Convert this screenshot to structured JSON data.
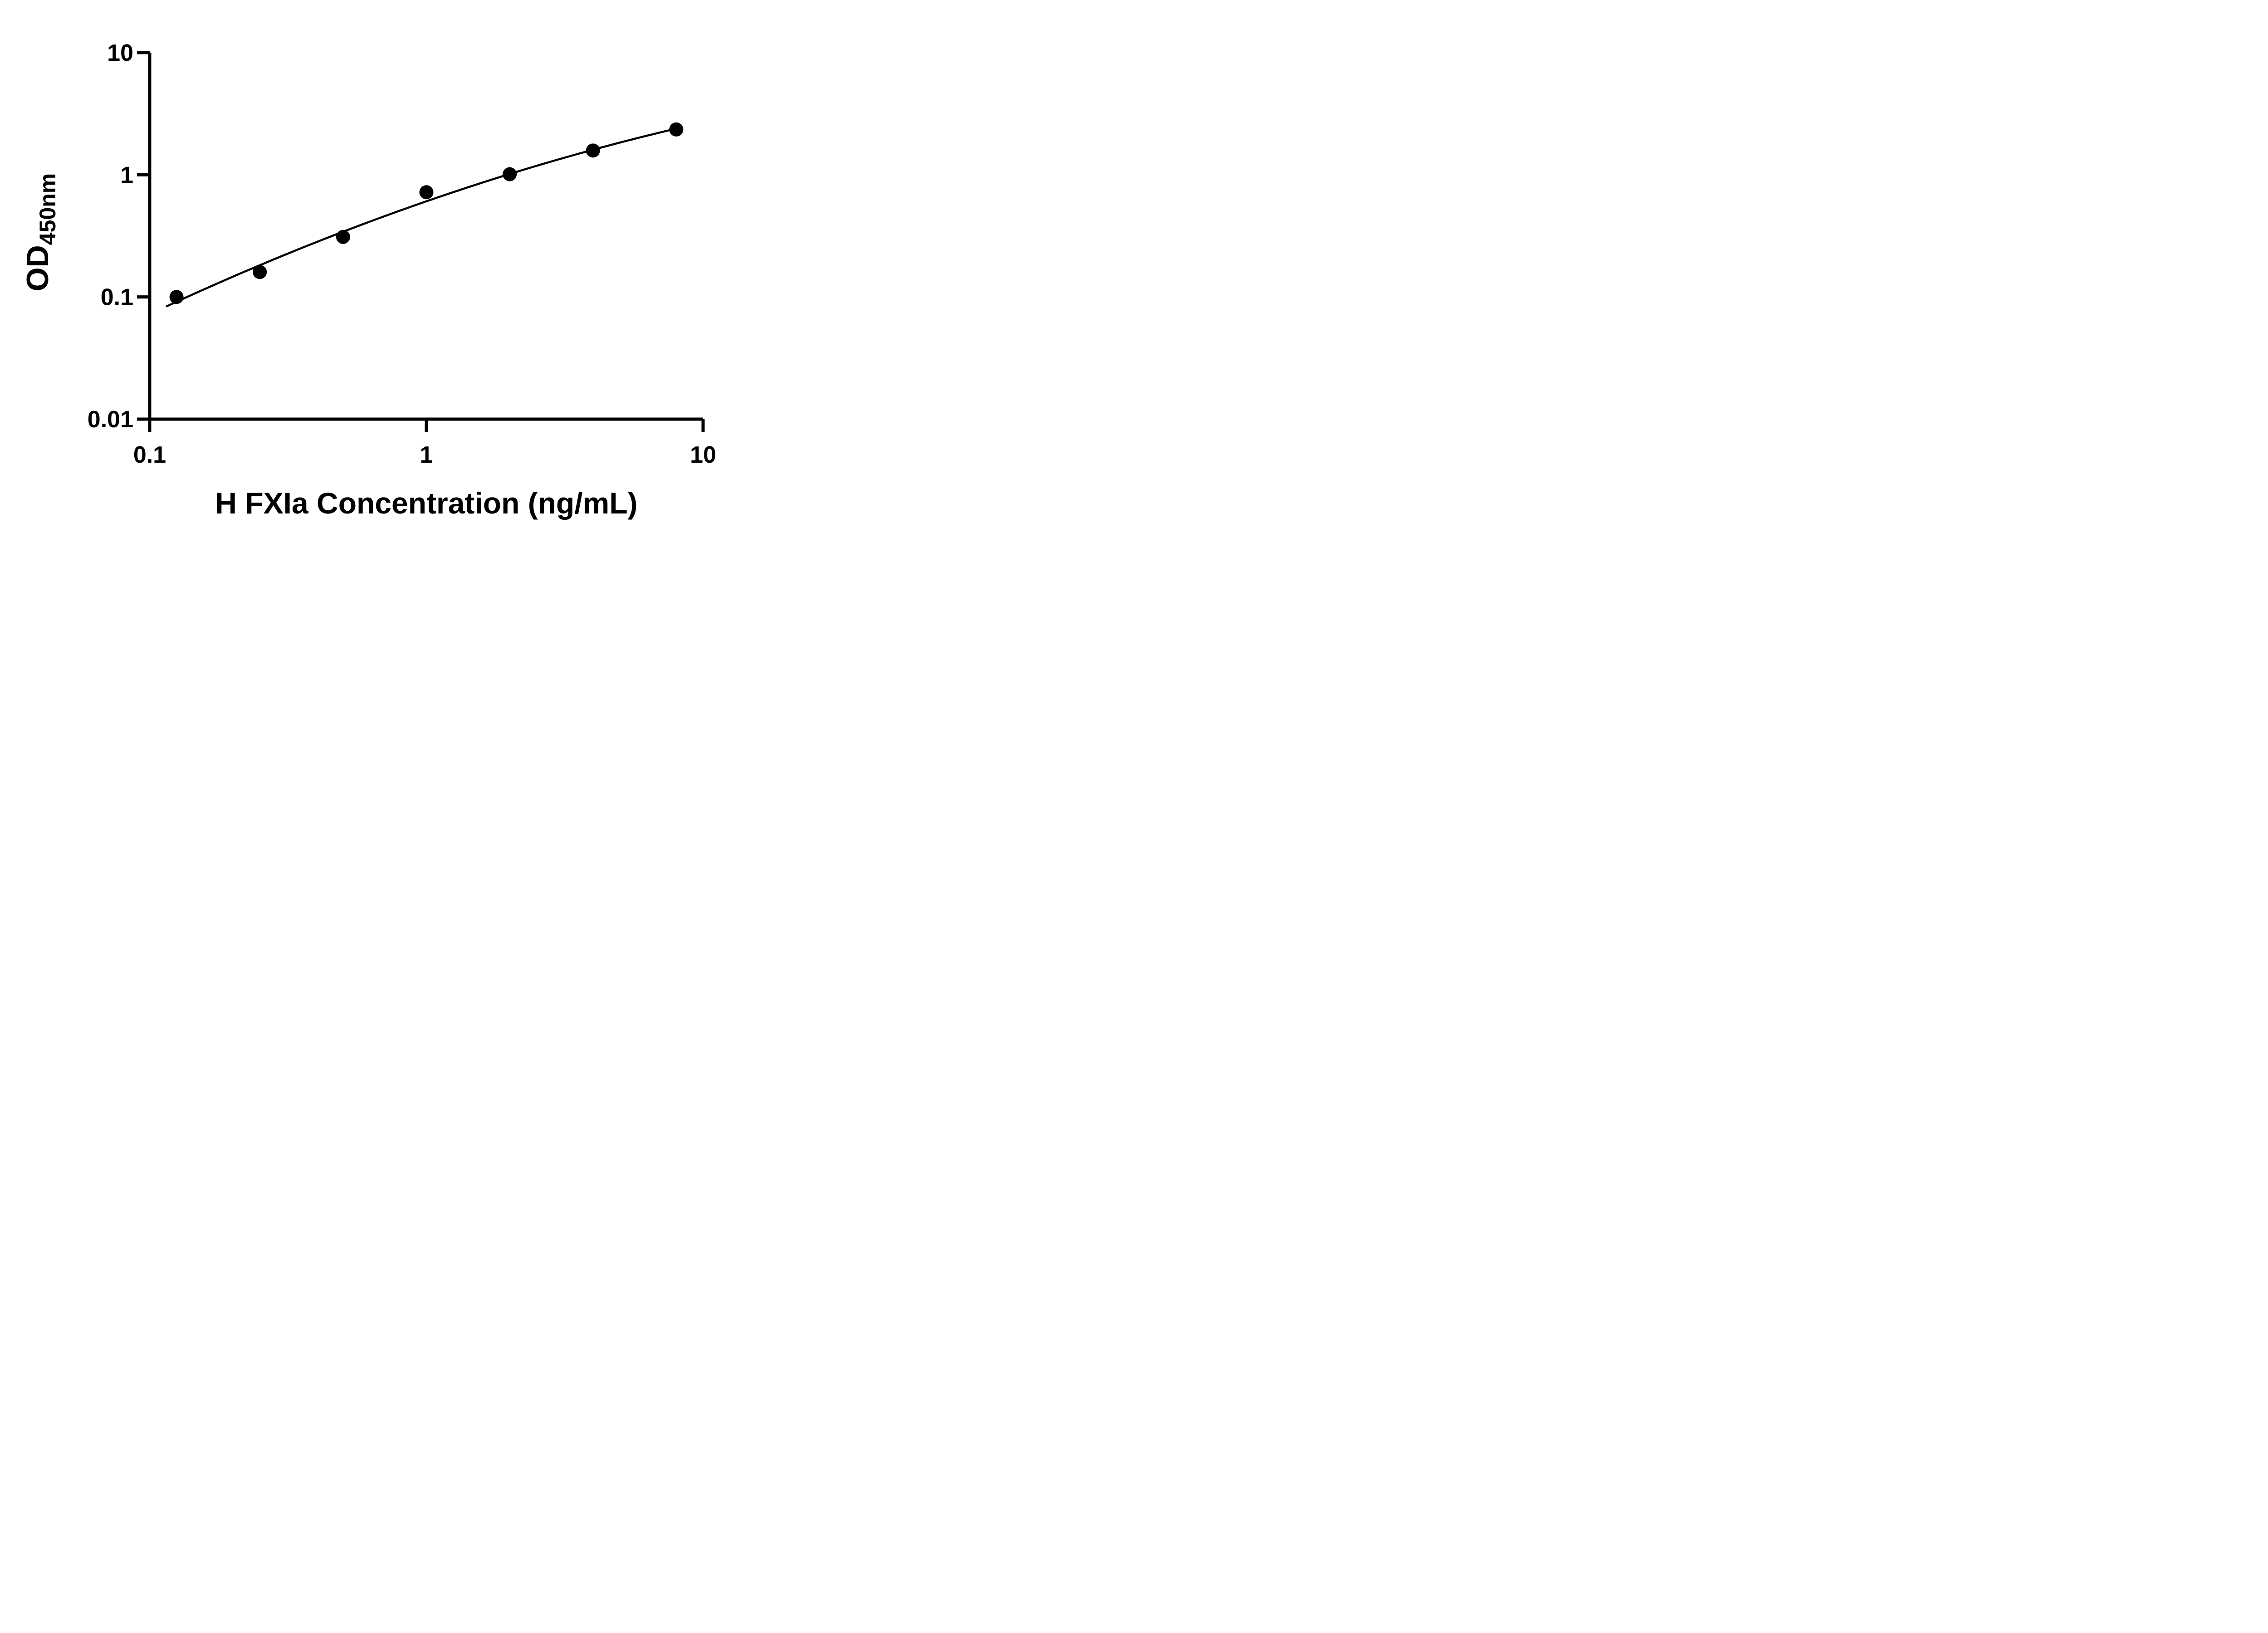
{
  "figure": {
    "background": "#ffffff"
  },
  "chart_data": {
    "type": "scatter",
    "title": "",
    "xlabel": "H FXIa Concentration (ng/mL)",
    "ylabel": "OD450nm",
    "ylabel_main": "OD",
    "ylabel_sub": "450nm",
    "x_scale": "log10",
    "y_scale": "log10",
    "xlim": [
      0.1,
      10
    ],
    "ylim": [
      0.01,
      10
    ],
    "x_tick_values": [
      0.1,
      1,
      10
    ],
    "x_tick_labels": [
      "0.1",
      "1",
      "10"
    ],
    "y_tick_values": [
      0.01,
      0.1,
      1,
      10
    ],
    "y_tick_labels": [
      "0.01",
      "0.1",
      "1",
      "10"
    ],
    "grid": false,
    "legend": null,
    "series": [
      {
        "x": [
          0.125,
          0.25,
          0.5,
          1,
          2,
          4,
          8
        ],
        "y": [
          0.1,
          0.16,
          0.31,
          0.72,
          1.01,
          1.58,
          2.35
        ],
        "marker": "filled-circle",
        "fit": "smooth"
      }
    ],
    "colors": {
      "marker": "#000000",
      "curve": "#000000",
      "axis": "#000000",
      "text": "#000000",
      "background": "#ffffff"
    }
  }
}
